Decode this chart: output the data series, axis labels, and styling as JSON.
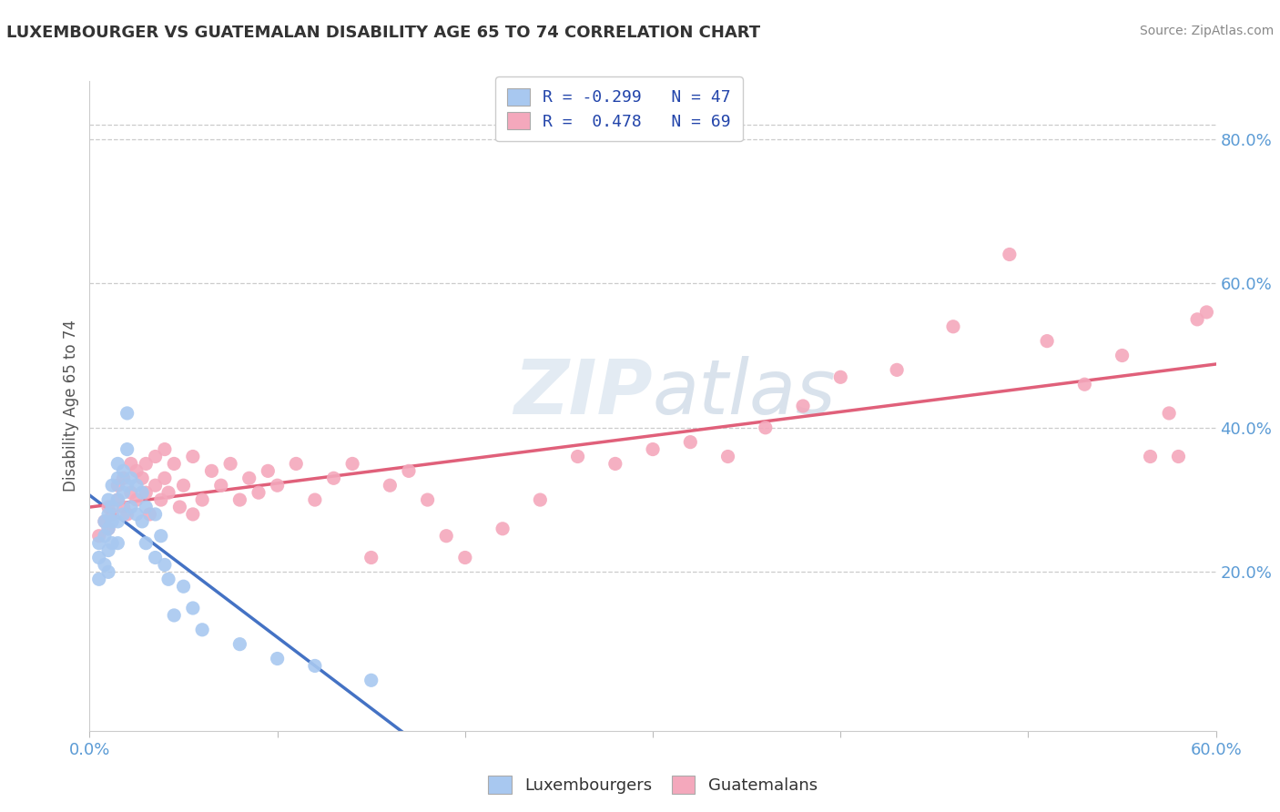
{
  "title": "LUXEMBOURGER VS GUATEMALAN DISABILITY AGE 65 TO 74 CORRELATION CHART",
  "source": "Source: ZipAtlas.com",
  "ylabel": "Disability Age 65 to 74",
  "right_yticks": [
    "20.0%",
    "40.0%",
    "60.0%",
    "80.0%"
  ],
  "right_ytick_vals": [
    0.2,
    0.4,
    0.6,
    0.8
  ],
  "xlim": [
    0.0,
    0.6
  ],
  "ylim": [
    -0.02,
    0.88
  ],
  "legend_r1": "R = -0.299   N = 47",
  "legend_r2": "R =  0.478   N = 69",
  "lux_color": "#a8c8f0",
  "guat_color": "#f4a8bc",
  "lux_line_color": "#4472c4",
  "guat_line_color": "#e0607a",
  "lux_scatter_x": [
    0.005,
    0.005,
    0.005,
    0.008,
    0.008,
    0.008,
    0.01,
    0.01,
    0.01,
    0.01,
    0.01,
    0.012,
    0.012,
    0.012,
    0.012,
    0.015,
    0.015,
    0.015,
    0.015,
    0.015,
    0.018,
    0.018,
    0.018,
    0.02,
    0.02,
    0.02,
    0.022,
    0.022,
    0.025,
    0.025,
    0.028,
    0.028,
    0.03,
    0.03,
    0.035,
    0.035,
    0.038,
    0.04,
    0.042,
    0.045,
    0.05,
    0.055,
    0.06,
    0.08,
    0.1,
    0.12,
    0.15
  ],
  "lux_scatter_y": [
    0.24,
    0.22,
    0.19,
    0.27,
    0.25,
    0.21,
    0.3,
    0.28,
    0.26,
    0.23,
    0.2,
    0.32,
    0.29,
    0.27,
    0.24,
    0.35,
    0.33,
    0.3,
    0.27,
    0.24,
    0.34,
    0.31,
    0.28,
    0.42,
    0.37,
    0.32,
    0.33,
    0.29,
    0.32,
    0.28,
    0.31,
    0.27,
    0.29,
    0.24,
    0.28,
    0.22,
    0.25,
    0.21,
    0.19,
    0.14,
    0.18,
    0.15,
    0.12,
    0.1,
    0.08,
    0.07,
    0.05
  ],
  "guat_scatter_x": [
    0.005,
    0.008,
    0.01,
    0.01,
    0.012,
    0.015,
    0.015,
    0.018,
    0.018,
    0.02,
    0.022,
    0.022,
    0.025,
    0.025,
    0.028,
    0.03,
    0.03,
    0.032,
    0.035,
    0.035,
    0.038,
    0.04,
    0.04,
    0.042,
    0.045,
    0.048,
    0.05,
    0.055,
    0.055,
    0.06,
    0.065,
    0.07,
    0.075,
    0.08,
    0.085,
    0.09,
    0.095,
    0.1,
    0.11,
    0.12,
    0.13,
    0.14,
    0.15,
    0.16,
    0.17,
    0.18,
    0.19,
    0.2,
    0.22,
    0.24,
    0.26,
    0.28,
    0.3,
    0.32,
    0.34,
    0.36,
    0.38,
    0.4,
    0.43,
    0.46,
    0.49,
    0.51,
    0.53,
    0.55,
    0.565,
    0.575,
    0.58,
    0.59,
    0.595
  ],
  "guat_scatter_y": [
    0.25,
    0.27,
    0.26,
    0.29,
    0.28,
    0.3,
    0.32,
    0.29,
    0.33,
    0.28,
    0.31,
    0.35,
    0.3,
    0.34,
    0.33,
    0.31,
    0.35,
    0.28,
    0.32,
    0.36,
    0.3,
    0.33,
    0.37,
    0.31,
    0.35,
    0.29,
    0.32,
    0.28,
    0.36,
    0.3,
    0.34,
    0.32,
    0.35,
    0.3,
    0.33,
    0.31,
    0.34,
    0.32,
    0.35,
    0.3,
    0.33,
    0.35,
    0.22,
    0.32,
    0.34,
    0.3,
    0.25,
    0.22,
    0.26,
    0.3,
    0.36,
    0.35,
    0.37,
    0.38,
    0.36,
    0.4,
    0.43,
    0.47,
    0.48,
    0.54,
    0.64,
    0.52,
    0.46,
    0.5,
    0.36,
    0.42,
    0.36,
    0.55,
    0.56
  ]
}
